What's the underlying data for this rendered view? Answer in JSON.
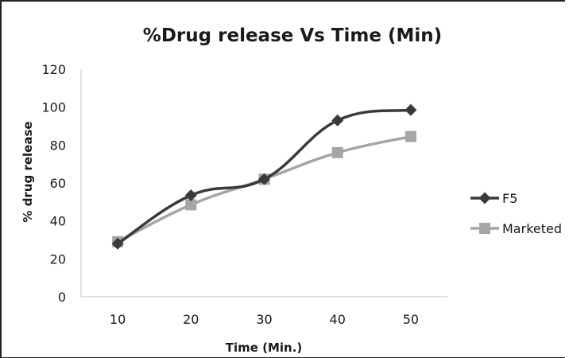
{
  "chart_data": {
    "type": "line",
    "title": "%Drug release Vs Time (Min)",
    "xlabel": "Time (Min.)",
    "ylabel": "% drug release",
    "categories": [
      "10",
      "20",
      "30",
      "40",
      "50"
    ],
    "ylim": [
      0,
      120
    ],
    "yticks": [
      "0",
      "20",
      "40",
      "60",
      "80",
      "100",
      "120"
    ],
    "grid": false,
    "legend_position": "right",
    "series": [
      {
        "name": "F5",
        "values": [
          28,
          53.5,
          62,
          93,
          98.5
        ],
        "color": "#3a3a3a",
        "marker": "diamond"
      },
      {
        "name": "Marketed",
        "values": [
          29,
          48.5,
          62,
          76,
          84.5
        ],
        "color": "#a6a6a6",
        "marker": "square"
      }
    ]
  }
}
